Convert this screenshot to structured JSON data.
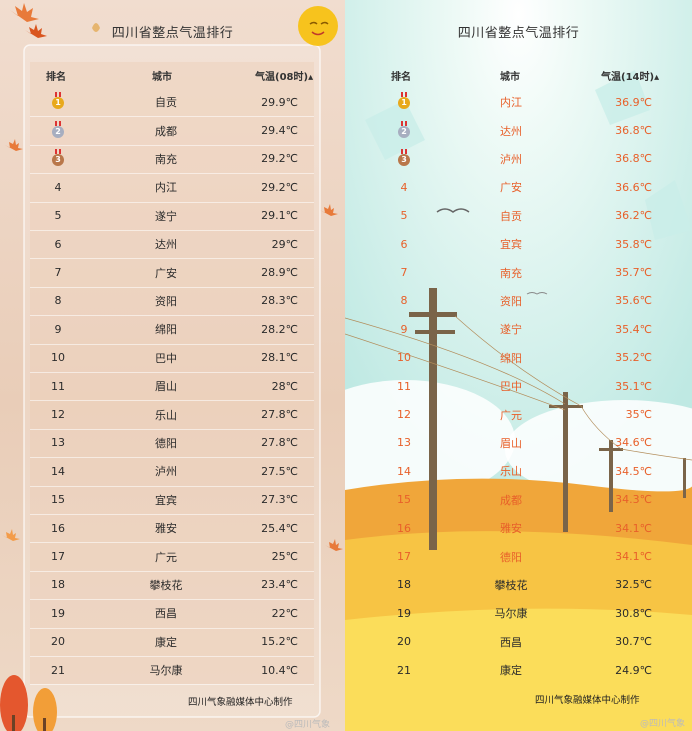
{
  "left": {
    "title": "四川省整点气温排行",
    "headers": {
      "rank": "排名",
      "city": "城市",
      "temp": "气温(08时)"
    },
    "rows": [
      {
        "rank": "1",
        "city": "自贡",
        "temp": "29.9℃"
      },
      {
        "rank": "2",
        "city": "成都",
        "temp": "29.4℃"
      },
      {
        "rank": "3",
        "city": "南充",
        "temp": "29.2℃"
      },
      {
        "rank": "4",
        "city": "内江",
        "temp": "29.2℃"
      },
      {
        "rank": "5",
        "city": "遂宁",
        "temp": "29.1℃"
      },
      {
        "rank": "6",
        "city": "达州",
        "temp": "29℃"
      },
      {
        "rank": "7",
        "city": "广安",
        "temp": "28.9℃"
      },
      {
        "rank": "8",
        "city": "资阳",
        "temp": "28.3℃"
      },
      {
        "rank": "9",
        "city": "绵阳",
        "temp": "28.2℃"
      },
      {
        "rank": "10",
        "city": "巴中",
        "temp": "28.1℃"
      },
      {
        "rank": "11",
        "city": "眉山",
        "temp": "28℃"
      },
      {
        "rank": "12",
        "city": "乐山",
        "temp": "27.8℃"
      },
      {
        "rank": "13",
        "city": "德阳",
        "temp": "27.8℃"
      },
      {
        "rank": "14",
        "city": "泸州",
        "temp": "27.5℃"
      },
      {
        "rank": "15",
        "city": "宜宾",
        "temp": "27.3℃"
      },
      {
        "rank": "16",
        "city": "雅安",
        "temp": "25.4℃"
      },
      {
        "rank": "17",
        "city": "广元",
        "temp": "25℃"
      },
      {
        "rank": "18",
        "city": "攀枝花",
        "temp": "23.4℃"
      },
      {
        "rank": "19",
        "city": "西昌",
        "temp": "22℃"
      },
      {
        "rank": "20",
        "city": "康定",
        "temp": "15.2℃"
      },
      {
        "rank": "21",
        "city": "马尔康",
        "temp": "10.4℃"
      }
    ],
    "footer": "四川气象融媒体中心制作",
    "watermark": "@四川气象"
  },
  "right": {
    "title": "四川省整点气温排行",
    "headers": {
      "rank": "排名",
      "city": "城市",
      "temp": "气温(14时)"
    },
    "rows": [
      {
        "rank": "1",
        "city": "内江",
        "temp": "36.9℃"
      },
      {
        "rank": "2",
        "city": "达州",
        "temp": "36.8℃"
      },
      {
        "rank": "3",
        "city": "泸州",
        "temp": "36.8℃"
      },
      {
        "rank": "4",
        "city": "广安",
        "temp": "36.6℃"
      },
      {
        "rank": "5",
        "city": "自贡",
        "temp": "36.2℃"
      },
      {
        "rank": "6",
        "city": "宜宾",
        "temp": "35.8℃"
      },
      {
        "rank": "7",
        "city": "南充",
        "temp": "35.7℃"
      },
      {
        "rank": "8",
        "city": "资阳",
        "temp": "35.6℃"
      },
      {
        "rank": "9",
        "city": "遂宁",
        "temp": "35.4℃"
      },
      {
        "rank": "10",
        "city": "绵阳",
        "temp": "35.2℃"
      },
      {
        "rank": "11",
        "city": "巴中",
        "temp": "35.1℃"
      },
      {
        "rank": "12",
        "city": "广元",
        "temp": "35℃"
      },
      {
        "rank": "13",
        "city": "眉山",
        "temp": "34.6℃"
      },
      {
        "rank": "14",
        "city": "乐山",
        "temp": "34.5℃"
      },
      {
        "rank": "15",
        "city": "成都",
        "temp": "34.3℃"
      },
      {
        "rank": "16",
        "city": "雅安",
        "temp": "34.1℃"
      },
      {
        "rank": "17",
        "city": "德阳",
        "temp": "34.1℃"
      },
      {
        "rank": "18",
        "city": "攀枝花",
        "temp": "32.5℃"
      },
      {
        "rank": "19",
        "city": "马尔康",
        "temp": "30.8℃"
      },
      {
        "rank": "20",
        "city": "西昌",
        "temp": "30.7℃"
      },
      {
        "rank": "21",
        "city": "康定",
        "temp": "24.9℃"
      }
    ],
    "footer": "四川气象融媒体中心制作",
    "watermark": "@四川气象"
  },
  "colors": {
    "hot_text": "#e8602a",
    "normal_text": "#2b2b2b",
    "gold": "#e8a91c",
    "silver": "#a7aec0",
    "bronze": "#b9774a"
  }
}
